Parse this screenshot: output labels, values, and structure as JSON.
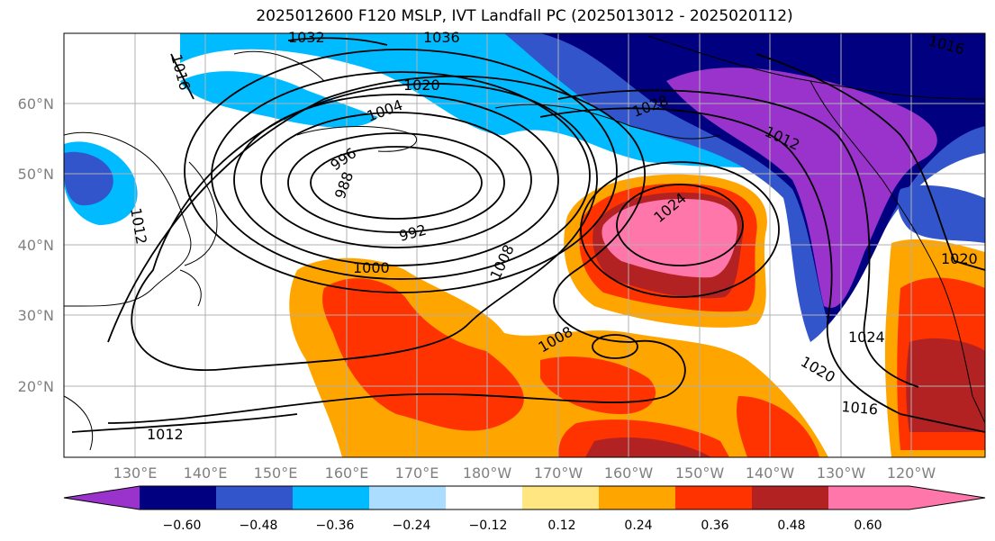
{
  "title": "2025012600 F120 MSLP, IVT Landfall PC (2025013012 - 2025020112)",
  "map": {
    "lat_labels": [
      "60°N",
      "50°N",
      "40°N",
      "30°N",
      "20°N"
    ],
    "lon_labels": [
      "130°E",
      "140°E",
      "150°E",
      "160°E",
      "170°E",
      "180°W",
      "170°W",
      "160°W",
      "150°W",
      "140°W",
      "130°W",
      "120°W"
    ],
    "tick_label_color": "#808080",
    "contour_labels": [
      "1032",
      "1036",
      "1020",
      "1004",
      "996",
      "988",
      "992",
      "1000",
      "1008",
      "1008",
      "1024",
      "1012",
      "1016",
      "1020",
      "1024",
      "1016",
      "1020",
      "1012",
      "1028",
      "1012",
      "1016"
    ]
  },
  "colorbar": {
    "tick_labels": [
      "−0.60",
      "−0.48",
      "−0.36",
      "−0.24",
      "−0.12",
      "0.12",
      "0.24",
      "0.36",
      "0.48",
      "0.60"
    ],
    "colors": [
      "#9933cc",
      "#000080",
      "#3355cc",
      "#00bbff",
      "#aaddff",
      "#ffffff",
      "#ffe680",
      "#ffa500",
      "#ff3300",
      "#b22222",
      "#ff77aa"
    ]
  }
}
